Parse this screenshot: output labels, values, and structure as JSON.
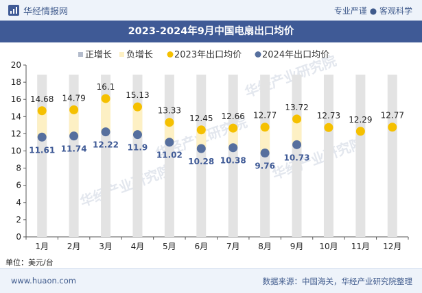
{
  "header": {
    "brand": "华经情报网",
    "tagline": "专业严谨 ● 客观科学"
  },
  "title": "2023-2024年9月中国电扇出口均价",
  "unit_label": "单位：美元/台",
  "footer": {
    "site": "www.huaon.com",
    "source": "数据来源：中国海关，华经产业研究院整理"
  },
  "watermark": "华经产业研究院",
  "colors": {
    "brand": "#3f5a96",
    "series_2023": "#f5c000",
    "series_2024": "#566f9e",
    "positive": "#b4bccc",
    "negative": "#fdf0c4",
    "column_bg": "#e3e3e3"
  },
  "chart_data": {
    "type": "line",
    "categories": [
      "1月",
      "2月",
      "3月",
      "4月",
      "5月",
      "6月",
      "7月",
      "8月",
      "9月",
      "10月",
      "11月",
      "12月"
    ],
    "series": [
      {
        "name": "2023年出口均价",
        "values": [
          14.68,
          14.79,
          16.1,
          15.13,
          13.33,
          12.45,
          12.66,
          12.77,
          13.72,
          12.73,
          12.29,
          12.77
        ]
      },
      {
        "name": "2024年出口均价",
        "values": [
          11.61,
          11.74,
          12.22,
          11.9,
          11.02,
          10.28,
          10.38,
          9.76,
          10.73,
          null,
          null,
          null
        ]
      }
    ],
    "legend": [
      "正增长",
      "负增长",
      "2023年出口均价",
      "2024年出口均价"
    ],
    "ylim": [
      0,
      20
    ],
    "yticks": [
      0,
      2,
      4,
      6,
      8,
      10,
      12,
      14,
      16,
      18,
      20
    ],
    "grid": false,
    "legend_position": "top"
  }
}
